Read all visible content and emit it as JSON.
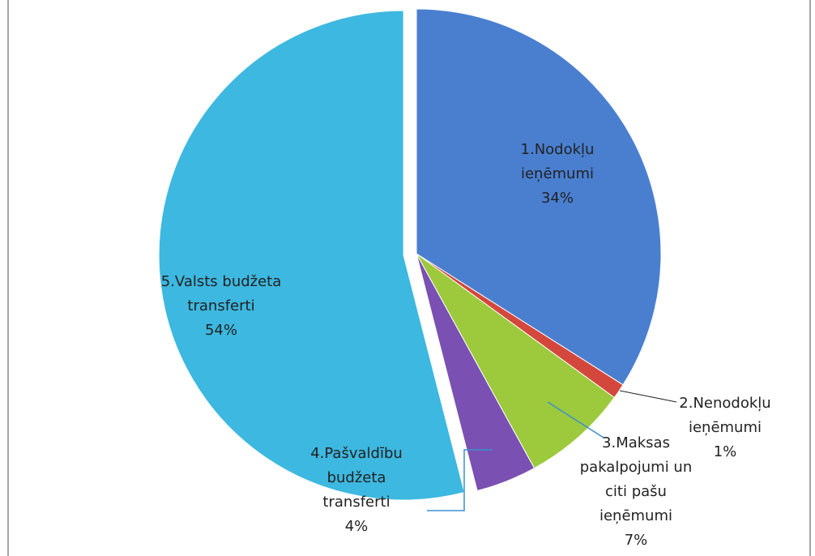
{
  "chart_data": {
    "type": "pie",
    "categories": [
      "1.Nodokļu ieņēmumi",
      "2.Nenodokļu ieņēmumi",
      "3.Maksas pakalpojumi un citi pašu ieņēmumi",
      "4.Pašvaldību budžeta transferti",
      "5.Valsts budžeta transferti"
    ],
    "values": [
      34,
      1,
      7,
      4,
      54
    ],
    "value_labels": [
      "34%",
      "1%",
      "7%",
      "4%",
      "54%"
    ],
    "colors": [
      "#4a7fd0",
      "#d4473c",
      "#9cca3c",
      "#7a50b2",
      "#3db8e0"
    ]
  }
}
